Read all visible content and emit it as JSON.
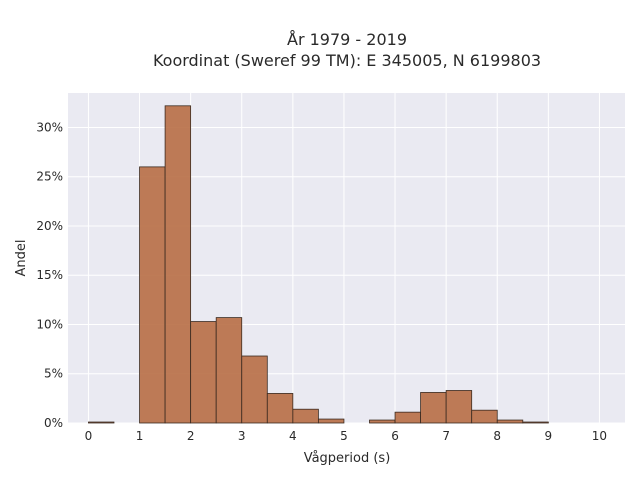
{
  "chart_data": {
    "type": "bar",
    "title_line1": "År 1979 - 2019",
    "title_line2": "Koordinat (Sweref 99 TM): E 345005, N 6199803",
    "xlabel": "Vågperiod (s)",
    "ylabel": "Andel",
    "xlim": [
      -0.4,
      10.5
    ],
    "ylim": [
      0,
      0.335
    ],
    "x_ticks": [
      0,
      1,
      2,
      3,
      4,
      5,
      6,
      7,
      8,
      9,
      10
    ],
    "y_ticks": [
      0,
      0.05,
      0.1,
      0.15,
      0.2,
      0.25,
      0.3
    ],
    "y_tick_labels": [
      "0%",
      "5%",
      "10%",
      "15%",
      "20%",
      "25%",
      "30%"
    ],
    "bin_width": 0.5,
    "bin_starts": [
      0,
      0.5,
      1,
      1.5,
      2,
      2.5,
      3,
      3.5,
      4,
      4.5,
      5,
      5.5,
      6,
      6.5,
      7,
      7.5,
      8,
      8.5,
      9,
      9.5
    ],
    "values": [
      0.001,
      0,
      0.26,
      0.322,
      0.103,
      0.107,
      0.068,
      0.03,
      0.014,
      0.004,
      0,
      0.003,
      0.011,
      0.031,
      0.033,
      0.013,
      0.003,
      0.001,
      0,
      0
    ],
    "bar_color": "#b86e45",
    "bar_edge": "#3a2a20",
    "plot_bg": "#eaeaf2",
    "grid": true
  }
}
